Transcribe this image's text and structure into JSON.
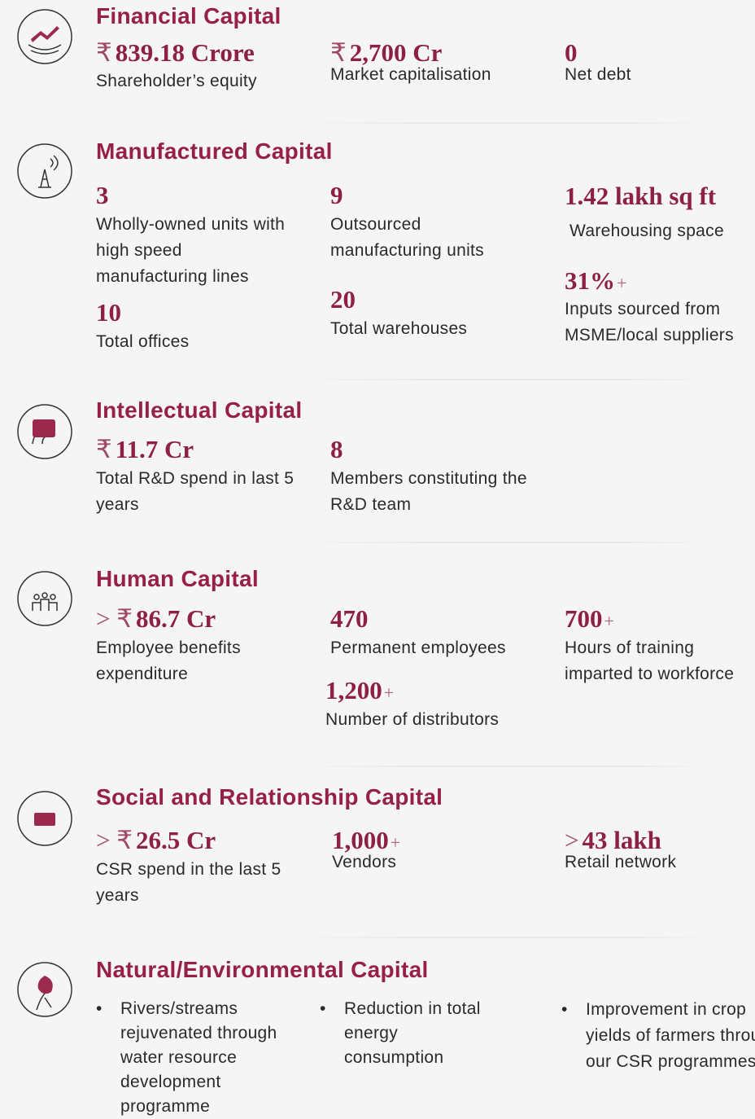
{
  "sections": [
    {
      "title": "Financial Capital",
      "metrics": [
        {
          "pre": "₹",
          "value": "839.18 Crore",
          "label": "Shareholder’s equity"
        },
        {
          "pre": "₹",
          "value": "2,700 Cr",
          "label": "Market capitalisation"
        },
        {
          "value": "0",
          "label": "Net debt"
        }
      ]
    },
    {
      "title": "Manufactured Capital",
      "metrics": [
        {
          "value": "3",
          "label": "Wholly-owned units with high speed manufacturing lines"
        },
        {
          "value": "9",
          "label": "Outsourced manufacturing units"
        },
        {
          "value": "1.42 lakh sq ft",
          "label": "Warehousing space"
        },
        {
          "value": "10",
          "label": "Total offices"
        },
        {
          "value": "20",
          "label": "Total warehouses"
        },
        {
          "value": "31%",
          "post": "+",
          "label": "Inputs sourced from MSME/local suppliers"
        }
      ]
    },
    {
      "title": "Intellectual Capital",
      "metrics": [
        {
          "pre": "₹",
          "value": "11.7 Cr",
          "label": "Total R&D spend in last 5 years"
        },
        {
          "value": "8",
          "label": "Members constituting the R&D team"
        }
      ]
    },
    {
      "title": "Human Capital",
      "metrics": [
        {
          "pre": "> ₹",
          "value": "86.7 Cr",
          "label": "Employee benefits expenditure"
        },
        {
          "value": "470",
          "label": "Permanent employees"
        },
        {
          "value": "1,200",
          "post": "+",
          "label": "Number of distributors"
        },
        {
          "value": "700",
          "post": "+",
          "label": "Hours of training imparted to workforce"
        }
      ]
    },
    {
      "title": "Social and Relationship Capital",
      "metrics": [
        {
          "pre": "> ₹",
          "value": "26.5 Cr",
          "label": "CSR spend in the last 5 years"
        },
        {
          "value": "1,000",
          "post": "+",
          "label": "Vendors"
        },
        {
          "pre": ">",
          "value": "43 lakh",
          "label": "Retail network"
        }
      ]
    },
    {
      "title": "Natural/Environmental Capital",
      "bullets": [
        "Rivers/streams rejuvenated through water resource development programme",
        "Reduction in total energy consumption",
        "Improvement in crop yields of farmers through our CSR programmes"
      ]
    }
  ]
}
